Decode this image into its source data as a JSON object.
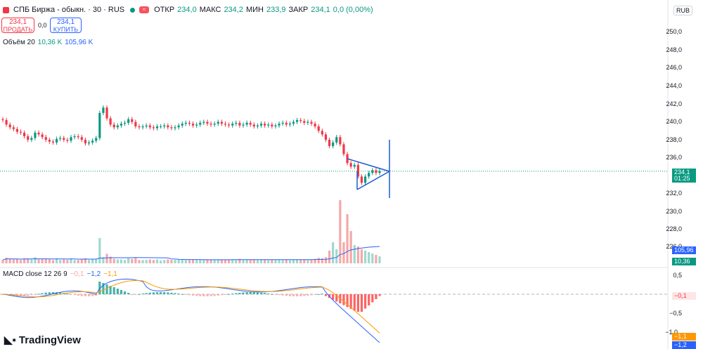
{
  "symbol": {
    "title": "СПБ Биржа - обыкн. · 30 · RUS",
    "open_label": "ОТКР",
    "open": "234,0",
    "high_label": "МАКС",
    "high": "234,2",
    "low_label": "МИН",
    "low": "233,9",
    "close_label": "ЗАКР",
    "close": "234,1",
    "change": "0,0 (0,00%)"
  },
  "trade": {
    "sell_price": "234,1",
    "sell_label": "ПРОДАТЬ",
    "spread": "0,0",
    "buy_price": "234,1",
    "buy_label": "КУПИТЬ"
  },
  "volume_legend": {
    "name": "Объём 20",
    "value": "10,36 K",
    "ma": "105,96 K"
  },
  "macd_legend": {
    "name": "MACD close 12 26 9",
    "hist": "−0,1",
    "macd": "−1,2",
    "signal": "−1,1"
  },
  "currency": "RUB",
  "price_axis": [
    "250,0",
    "248,0",
    "246,0",
    "244,0",
    "242,0",
    "240,0",
    "238,0",
    "236,0",
    "232,0",
    "230,0",
    "228,0",
    "226,0"
  ],
  "price_tag": {
    "price": "234,1",
    "timer": "01:25"
  },
  "volume_tags": {
    "ma": "105,96 K",
    "volume": "10,36 K"
  },
  "macd_axis": [
    "0,5",
    "−0,5",
    "−1,0"
  ],
  "macd_tags": {
    "hist": "−0,1",
    "signal": "−1,1",
    "macd": "−1,2"
  },
  "brand": "TradingView",
  "colors": {
    "up": "#089981",
    "down": "#f23645",
    "macd": "#2962ff",
    "signal": "#ff9800",
    "volume_ma": "#2962ff"
  },
  "chart_data": {
    "type": "candlestick",
    "timeframe": "30",
    "y_range": [
      226,
      251
    ],
    "current_price": 234.1,
    "candles_close": [
      239.8,
      239.3,
      239.0,
      238.8,
      238.5,
      238.4,
      238.0,
      237.6,
      237.8,
      238.4,
      238.2,
      237.9,
      237.6,
      237.4,
      237.3,
      237.7,
      237.8,
      237.6,
      237.5,
      237.9,
      238.0,
      237.9,
      237.6,
      237.2,
      237.3,
      237.5,
      237.8,
      240.6,
      241.2,
      240.0,
      239.3,
      239.0,
      239.2,
      239.4,
      239.5,
      239.9,
      239.6,
      239.1,
      239.0,
      239.1,
      239.2,
      239.0,
      238.9,
      239.1,
      239.1,
      239.2,
      239.0,
      238.9,
      239.0,
      239.2,
      239.4,
      239.5,
      239.4,
      239.2,
      239.3,
      239.5,
      239.6,
      239.4,
      239.3,
      239.4,
      239.6,
      239.4,
      239.3,
      239.2,
      239.4,
      239.5,
      239.2,
      239.3,
      239.5,
      239.3,
      239.1,
      239.2,
      239.4,
      239.2,
      239.3,
      239.1,
      239.2,
      239.4,
      239.5,
      239.3,
      239.4,
      239.6,
      239.8,
      239.7,
      239.5,
      239.6,
      239.4,
      239.1,
      238.6,
      238.2,
      237.6,
      236.9,
      237.3,
      237.9,
      237.1,
      236.0,
      235.0,
      234.6,
      234.8,
      233.5,
      232.8,
      233.5,
      233.9,
      234.2,
      233.9,
      234.1
    ],
    "volume_ma_value": 105.96,
    "volume_last": 10.36,
    "macd": {
      "fast": 12,
      "slow": 26,
      "signal": 9,
      "hist_last": -0.1,
      "macd_last": -1.2,
      "signal_last": -1.1,
      "y_range": [
        -1.3,
        0.6
      ]
    },
    "drawing": "symmetrical-triangle"
  }
}
